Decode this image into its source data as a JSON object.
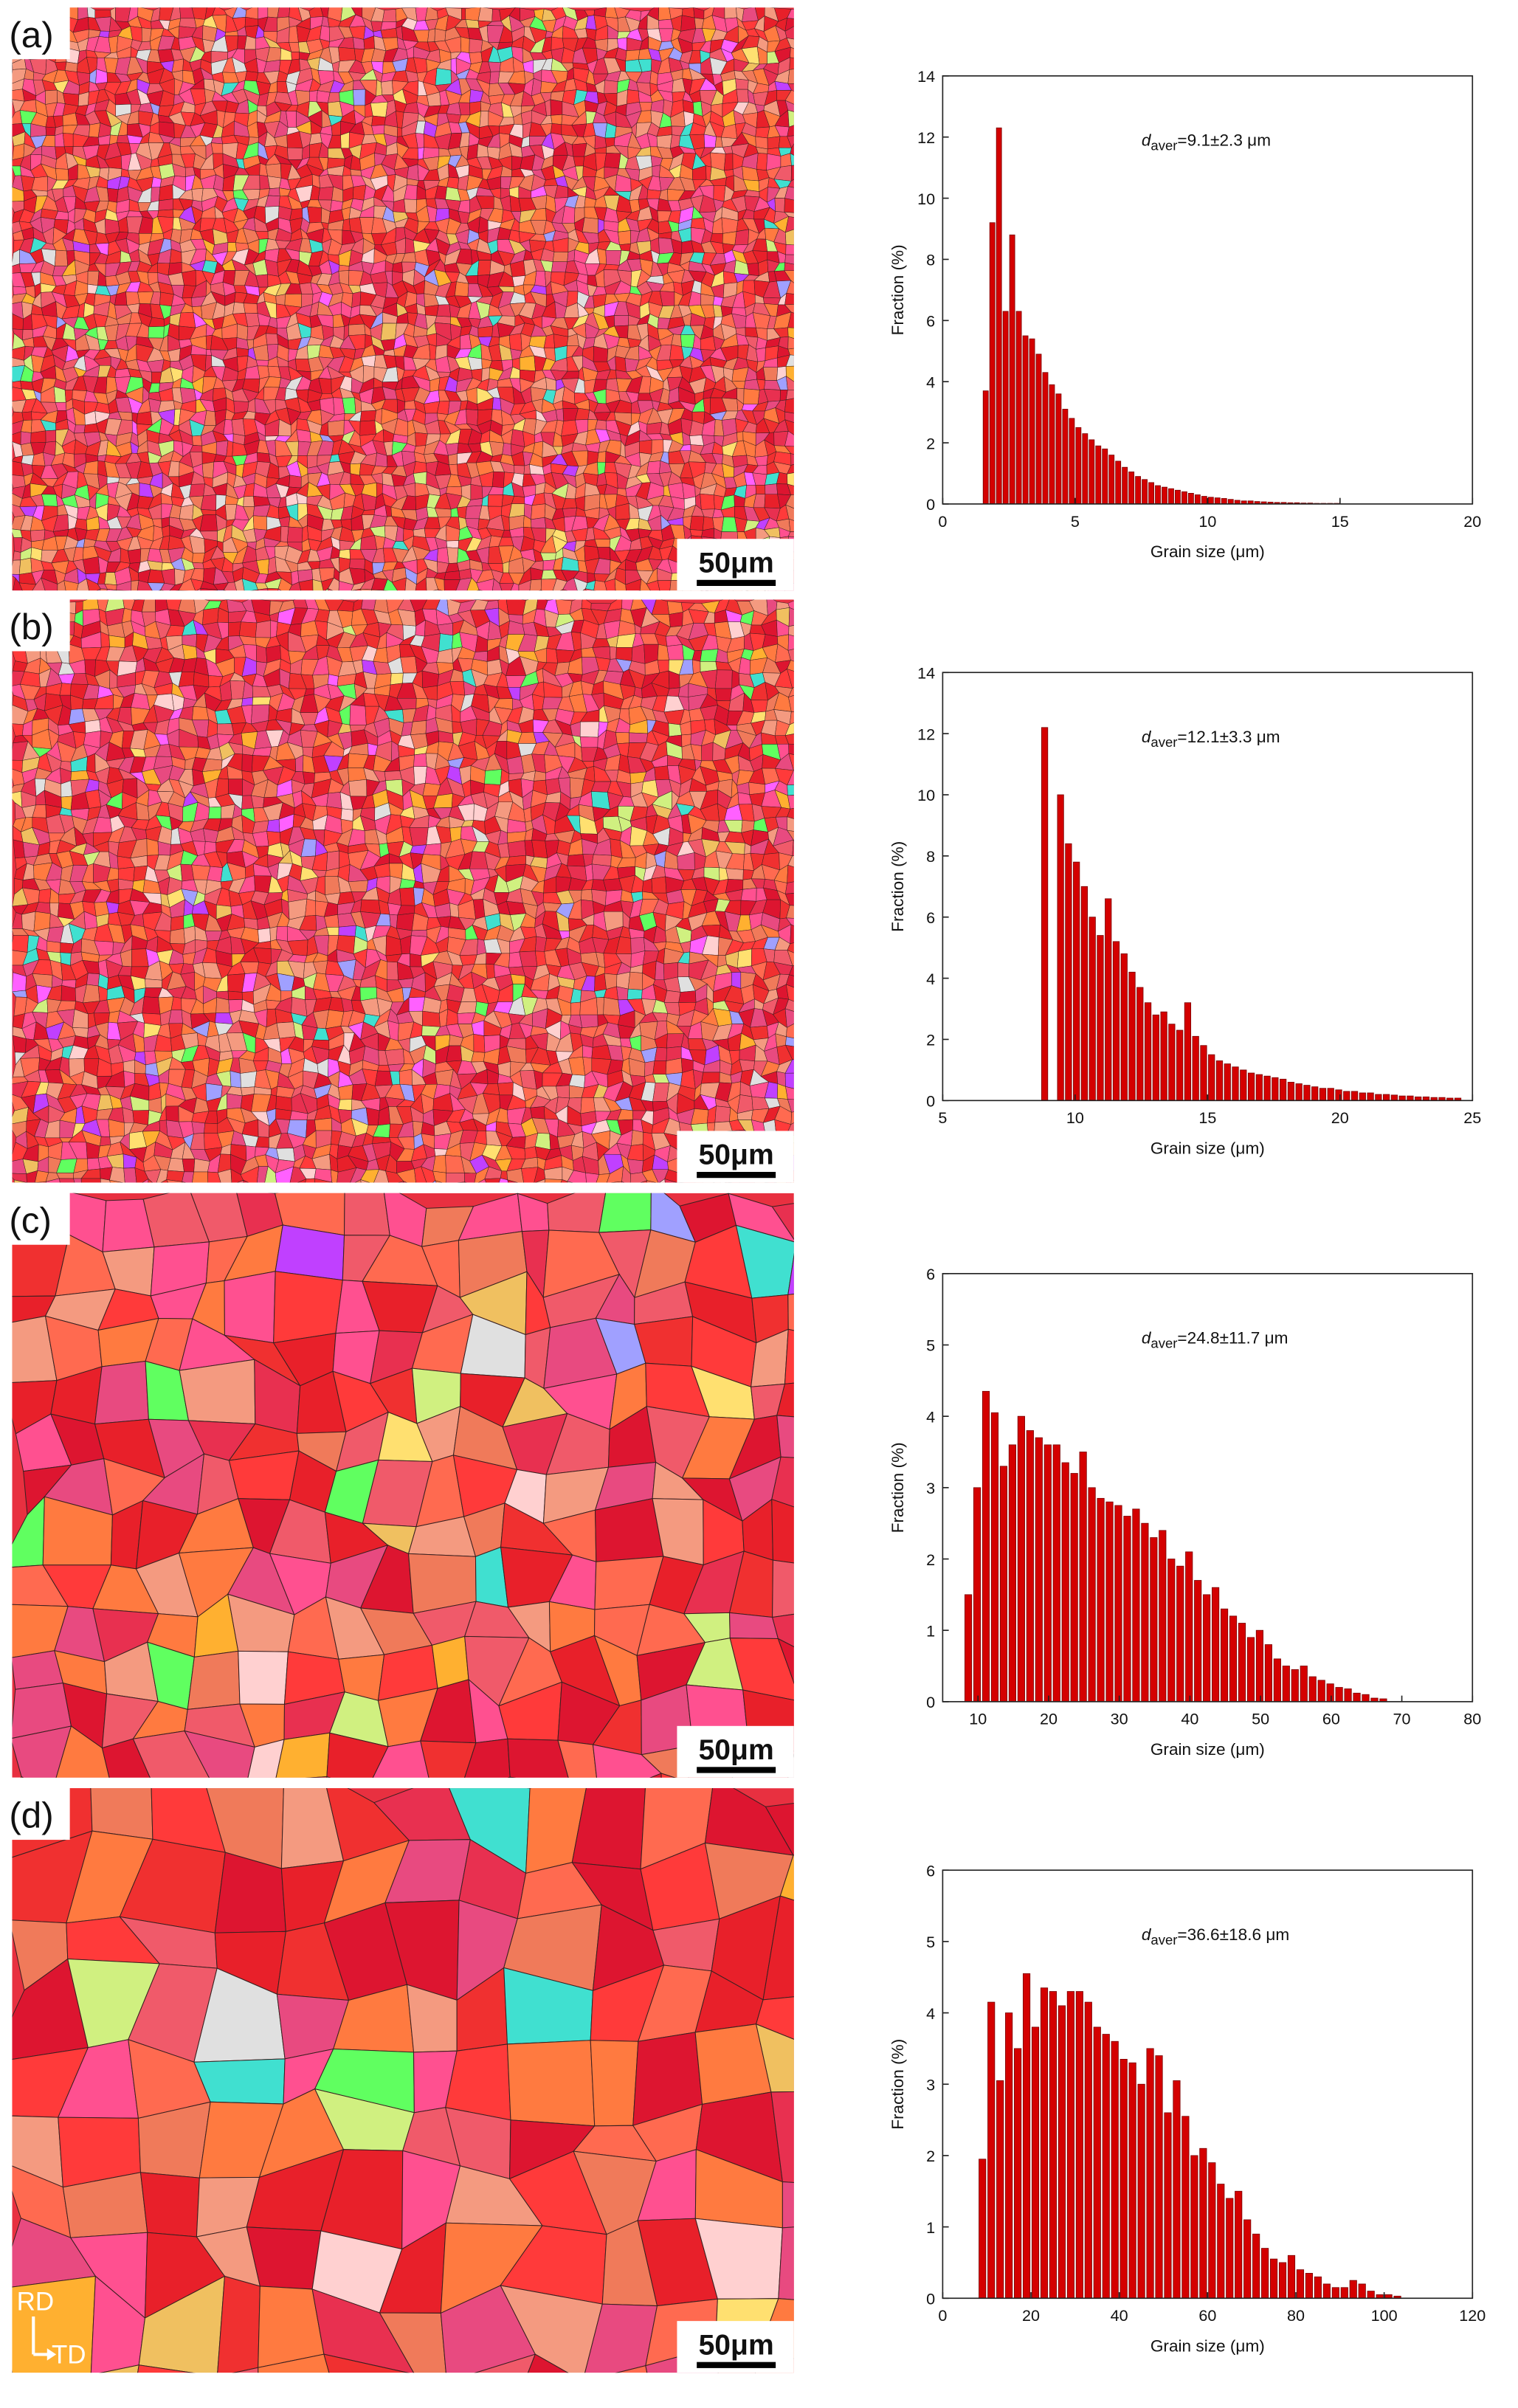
{
  "panels": [
    {
      "label": "(a)",
      "scale_bar": "50μm"
    },
    {
      "label": "(b)",
      "scale_bar": "50μm"
    },
    {
      "label": "(c)",
      "scale_bar": "50μm"
    },
    {
      "label": "(d)",
      "scale_bar": "50μm"
    }
  ],
  "orientation": {
    "rd": "RD",
    "td": "TD"
  },
  "chart_data": [
    {
      "type": "histogram",
      "annotation": {
        "symbol": "d",
        "subscript": "aver",
        "text": "=9.1±2.3 μm"
      },
      "x_label": "Grain size (μm)",
      "y_label": "Fraction (%)",
      "color": "#d40000",
      "bins": [
        1.5,
        1.75,
        2,
        2.25,
        2.5,
        2.75,
        3,
        3.25,
        3.5,
        3.75,
        4,
        4.25,
        4.5,
        4.75,
        5,
        5.25,
        5.5,
        5.75,
        6,
        6.25,
        6.5,
        6.75,
        7,
        7.25,
        7.5,
        7.75,
        8,
        8.25,
        8.5,
        8.75,
        9,
        9.25,
        9.5,
        9.75,
        10,
        10.25,
        10.5,
        10.75,
        11,
        11.25,
        11.5,
        11.75,
        12,
        12.25,
        12.5,
        12.75,
        13,
        13.25,
        13.5,
        13.75,
        14,
        14.25,
        14.5,
        14.75,
        15
      ],
      "values": [
        3.7,
        9.2,
        12.3,
        6.3,
        8.8,
        6.3,
        5.5,
        5.4,
        4.9,
        4.3,
        3.9,
        3.6,
        3.1,
        2.8,
        2.5,
        2.3,
        2.1,
        1.9,
        1.8,
        1.6,
        1.4,
        1.2,
        1.05,
        0.9,
        0.8,
        0.7,
        0.6,
        0.55,
        0.5,
        0.45,
        0.4,
        0.35,
        0.3,
        0.25,
        0.22,
        0.2,
        0.18,
        0.15,
        0.12,
        0.1,
        0.1,
        0.08,
        0.07,
        0.06,
        0.05,
        0.05,
        0.04,
        0.04,
        0.03,
        0.03,
        0.02,
        0.02,
        0.02,
        0.02
      ],
      "xlim": [
        0,
        20
      ],
      "ylim": [
        0,
        14
      ],
      "xticks": [
        0,
        5,
        10,
        15,
        20
      ],
      "yticks": [
        0,
        2,
        4,
        6,
        8,
        10,
        12,
        14
      ]
    },
    {
      "type": "histogram",
      "annotation": {
        "symbol": "d",
        "subscript": "aver",
        "text": "=12.1±3.3 μm"
      },
      "x_label": "Grain size (μm)",
      "y_label": "Fraction (%)",
      "color": "#d40000",
      "bins": [
        8.7,
        9,
        9.3,
        9.6,
        9.9,
        10.2,
        10.5,
        10.8,
        11.1,
        11.4,
        11.7,
        12,
        12.3,
        12.6,
        12.9,
        13.2,
        13.5,
        13.8,
        14.1,
        14.4,
        14.7,
        15,
        15.3,
        15.6,
        15.9,
        16.2,
        16.5,
        16.8,
        17.1,
        17.4,
        17.7,
        18,
        18.3,
        18.6,
        18.9,
        19.2,
        19.5,
        19.8,
        20.1,
        20.4,
        20.7,
        21,
        21.3,
        21.6,
        21.9,
        22.2,
        22.5,
        22.8,
        23.1,
        23.4,
        23.7,
        24,
        24.3,
        24.6
      ],
      "values": [
        12.2,
        0,
        10,
        8.4,
        7.8,
        7,
        6,
        5.4,
        6.6,
        5.2,
        4.8,
        4.2,
        3.7,
        3.2,
        2.8,
        2.9,
        2.5,
        2.3,
        3.2,
        2.1,
        1.8,
        1.5,
        1.3,
        1.2,
        1.1,
        1.0,
        0.9,
        0.85,
        0.8,
        0.75,
        0.7,
        0.6,
        0.55,
        0.5,
        0.45,
        0.4,
        0.4,
        0.35,
        0.3,
        0.3,
        0.25,
        0.25,
        0.2,
        0.2,
        0.18,
        0.15,
        0.15,
        0.12,
        0.12,
        0.1,
        0.1,
        0.08,
        0.08
      ],
      "xlim": [
        5,
        25
      ],
      "ylim": [
        0,
        14
      ],
      "xticks": [
        5,
        10,
        15,
        20,
        25
      ],
      "yticks": [
        0,
        2,
        4,
        6,
        8,
        10,
        12,
        14
      ]
    },
    {
      "type": "histogram",
      "annotation": {
        "symbol": "d",
        "subscript": "aver",
        "text": "=24.8±11.7 μm"
      },
      "x_label": "Grain size (μm)",
      "y_label": "Fraction (%)",
      "color": "#d40000",
      "bins": [
        8,
        9.25,
        10.5,
        11.75,
        13,
        14.25,
        15.5,
        16.75,
        18,
        19.25,
        20.5,
        21.75,
        23,
        24.25,
        25.5,
        26.75,
        28,
        29.25,
        30.5,
        31.75,
        33,
        34.25,
        35.5,
        36.75,
        38,
        39.25,
        40.5,
        41.75,
        43,
        44.25,
        45.5,
        46.75,
        48,
        49.25,
        50.5,
        51.75,
        53,
        54.25,
        55.5,
        56.75,
        58,
        59.25,
        60.5,
        61.75,
        63,
        64.25,
        65.5,
        66.75,
        68
      ],
      "values": [
        1.5,
        3,
        4.35,
        4.05,
        3.3,
        3.6,
        4,
        3.8,
        3.7,
        3.6,
        3.6,
        3.35,
        3.2,
        3.5,
        3,
        2.85,
        2.8,
        2.75,
        2.6,
        2.7,
        2.5,
        2.3,
        2.4,
        2,
        1.9,
        2.1,
        1.7,
        1.5,
        1.6,
        1.3,
        1.2,
        1.1,
        0.9,
        1,
        0.8,
        0.6,
        0.5,
        0.45,
        0.5,
        0.35,
        0.3,
        0.25,
        0.2,
        0.18,
        0.12,
        0.1,
        0.05,
        0.04
      ],
      "xlim": [
        5,
        80
      ],
      "ylim": [
        0,
        6
      ],
      "xticks": [
        10,
        20,
        30,
        40,
        50,
        60,
        70,
        80
      ],
      "yticks": [
        0,
        1,
        2,
        3,
        4,
        5,
        6
      ]
    },
    {
      "type": "histogram",
      "annotation": {
        "symbol": "d",
        "subscript": "aver",
        "text": "=36.6±18.6 μm"
      },
      "x_label": "Grain size (μm)",
      "y_label": "Fraction (%)",
      "color": "#d40000",
      "bins": [
        8,
        10,
        12,
        14,
        16,
        18,
        20,
        22,
        24,
        26,
        28,
        30,
        32,
        34,
        36,
        38,
        40,
        42,
        44,
        46,
        48,
        50,
        52,
        54,
        56,
        58,
        60,
        62,
        64,
        66,
        68,
        70,
        72,
        74,
        76,
        78,
        80,
        82,
        84,
        86,
        88,
        90,
        92,
        94,
        96,
        98,
        100,
        102,
        104
      ],
      "values": [
        1.95,
        4.15,
        3.05,
        4,
        3.5,
        4.55,
        3.8,
        4.35,
        4.3,
        4.1,
        4.3,
        4.3,
        4.15,
        3.8,
        3.7,
        3.6,
        3.35,
        3.3,
        3,
        3.5,
        3.4,
        2.6,
        3.05,
        2.55,
        2,
        2.1,
        1.9,
        1.6,
        1.4,
        1.5,
        1.1,
        0.9,
        0.7,
        0.55,
        0.5,
        0.6,
        0.4,
        0.35,
        0.3,
        0.2,
        0.15,
        0.15,
        0.25,
        0.2,
        0.1,
        0.05,
        0.05,
        0.03
      ],
      "xlim": [
        0,
        120
      ],
      "ylim": [
        0,
        6
      ],
      "xticks": [
        0,
        20,
        40,
        60,
        80,
        100,
        120
      ],
      "yticks": [
        0,
        1,
        2,
        3,
        4,
        5,
        6
      ]
    }
  ]
}
